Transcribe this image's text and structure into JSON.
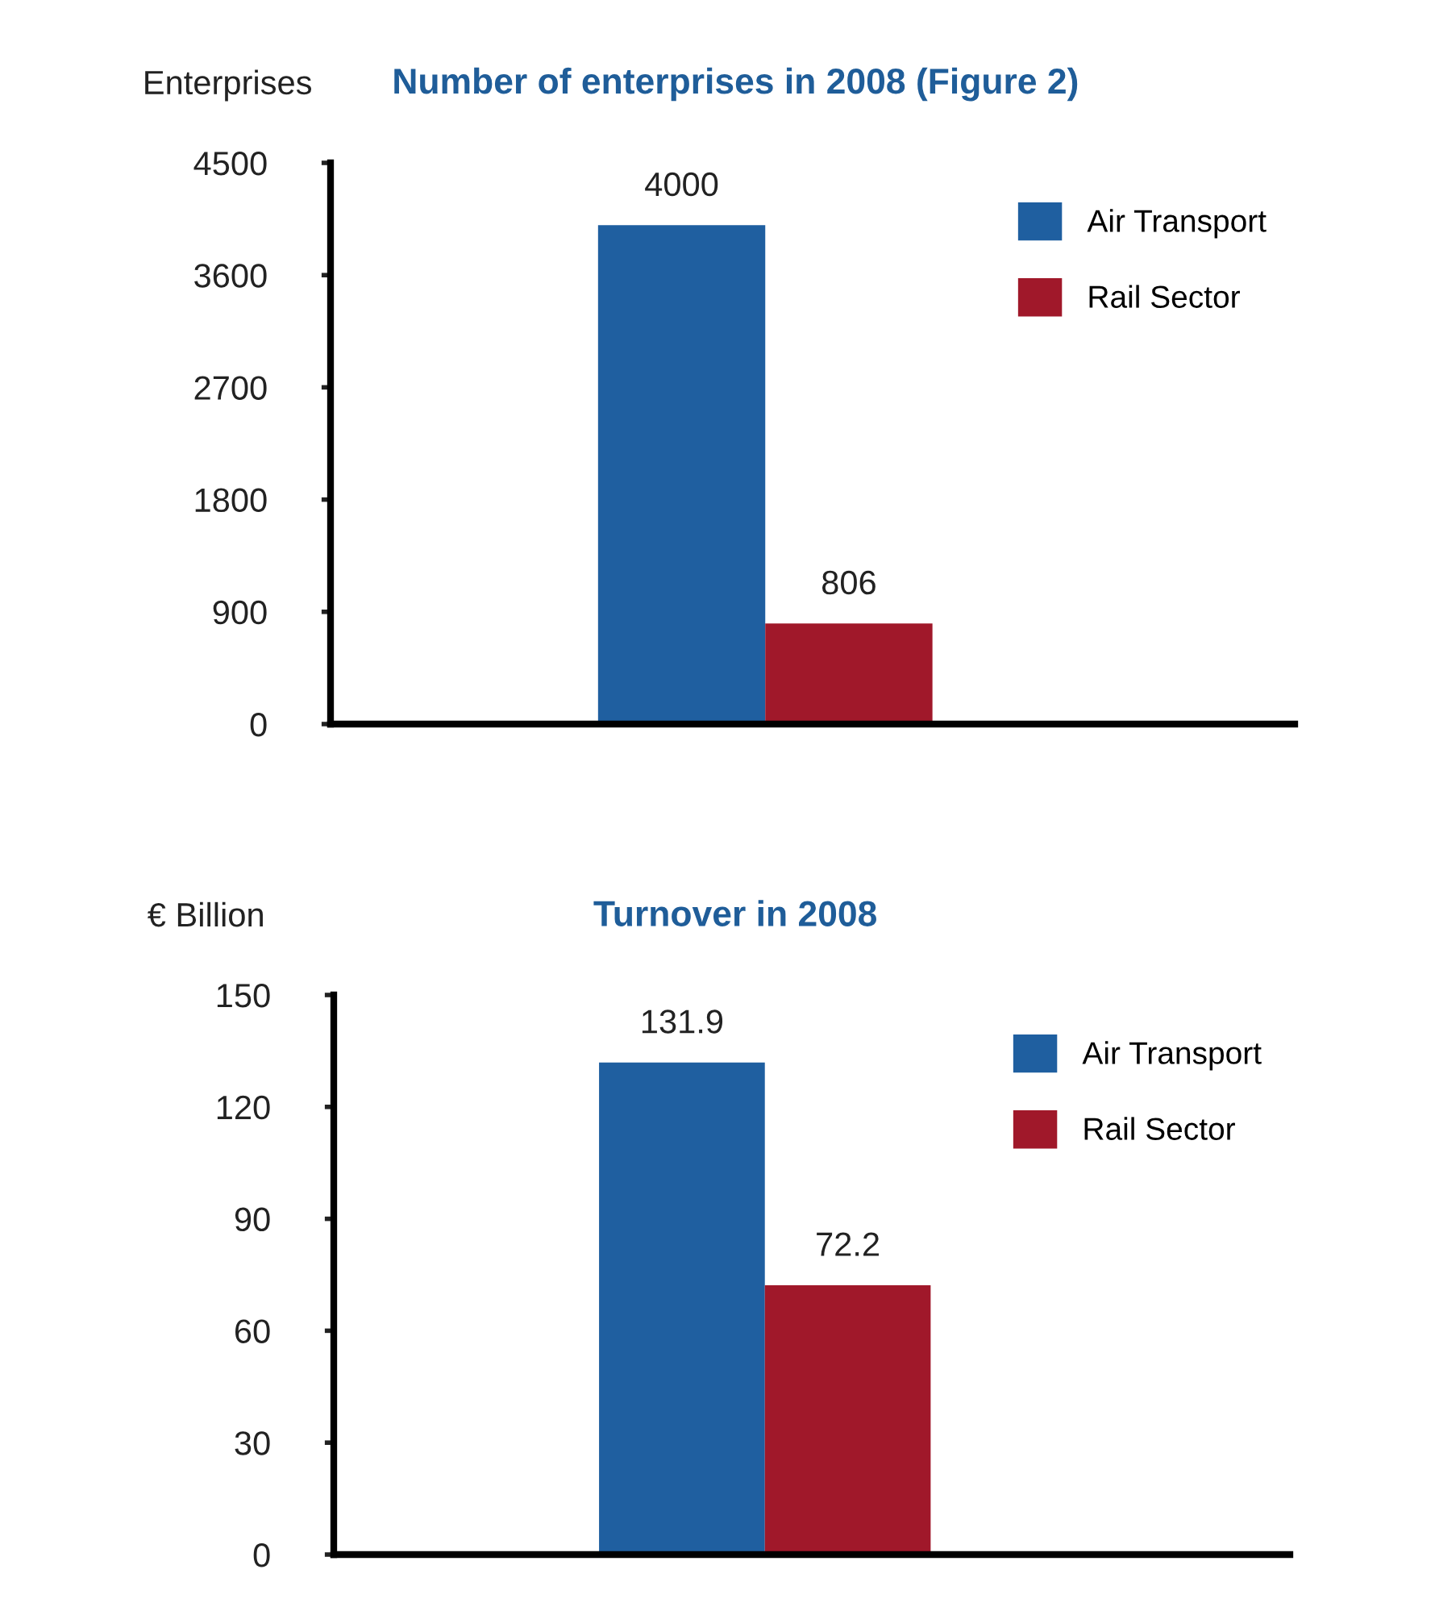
{
  "chart_data": [
    {
      "type": "bar",
      "title": "Number of enterprises in 2008 (Figure 2)",
      "ylabel": "Enterprises",
      "categories": [
        null
      ],
      "series": [
        {
          "name": "Air Transport",
          "color": "#1f5fa0",
          "values": [
            4000
          ]
        },
        {
          "name": "Rail Sector",
          "color": "#a0182a",
          "values": [
            806
          ]
        }
      ],
      "ylim": [
        0,
        4500
      ],
      "yticks": [
        0,
        900,
        1800,
        2700,
        3600,
        4500
      ],
      "data_labels": true,
      "legend": "top right",
      "grid": false
    },
    {
      "type": "bar",
      "title": "Turnover in 2008",
      "ylabel": "€ Billion",
      "categories": [
        null
      ],
      "series": [
        {
          "name": "Air Transport",
          "color": "#1f5fa0",
          "values": [
            131.9
          ]
        },
        {
          "name": "Rail Sector",
          "color": "#a0182a",
          "values": [
            72.2
          ]
        }
      ],
      "ylim": [
        0,
        150
      ],
      "yticks": [
        0,
        30,
        60,
        90,
        120,
        150
      ],
      "data_labels": true,
      "legend": "top right",
      "grid": false
    }
  ]
}
